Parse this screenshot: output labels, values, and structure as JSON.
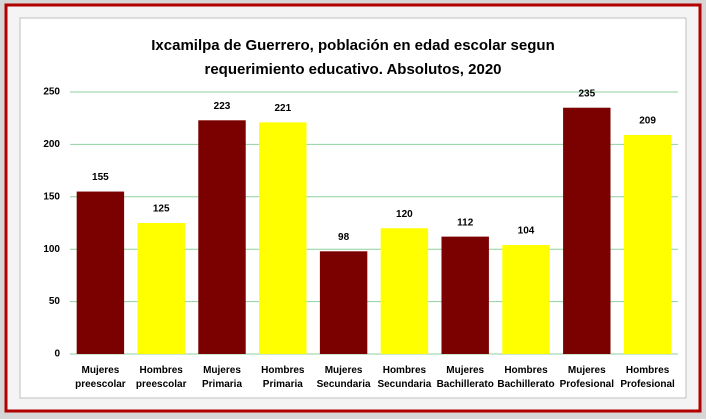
{
  "chart_data": {
    "type": "bar",
    "title": [
      "Ixcamilpa de Guerrero, población en edad escolar segun",
      "requerimiento educativo. Absolutos, 2020"
    ],
    "categories": [
      "Mujeres preescolar",
      "Hombres preescolar",
      "Mujeres Primaria",
      "Hombres Primaria",
      "Mujeres Secundaria",
      "Hombres Secundaria",
      "Mujeres Bachillerato",
      "Hombres Bachillerato",
      "Mujeres Profesional",
      "Hombres Profesional"
    ],
    "values": [
      155,
      125,
      223,
      221,
      98,
      120,
      112,
      104,
      235,
      209
    ],
    "colors": [
      "#7b0000",
      "#ffff00",
      "#7b0000",
      "#ffff00",
      "#7b0000",
      "#ffff00",
      "#7b0000",
      "#ffff00",
      "#7b0000",
      "#ffff00"
    ],
    "ylim": [
      0,
      250
    ],
    "yticks": [
      0,
      50,
      100,
      150,
      200,
      250
    ],
    "grid": true
  }
}
